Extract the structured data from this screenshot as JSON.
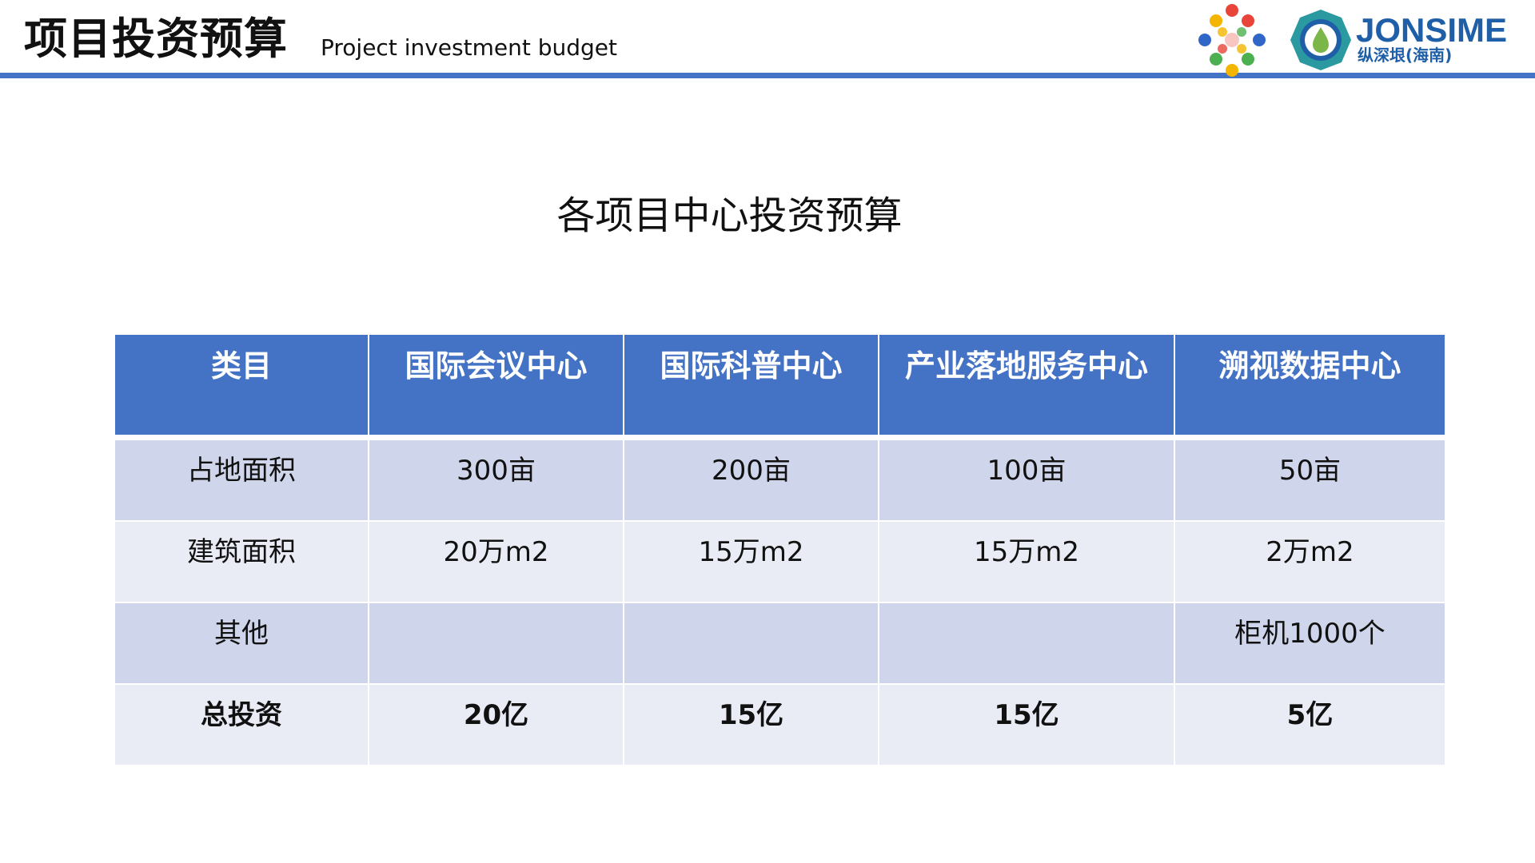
{
  "header": {
    "title": "项目投资预算",
    "subtitle": "Project investment budget",
    "brand": {
      "name": "JONSIME",
      "cn": "纵深垠(海南)",
      "colors": {
        "brand_blue": "#1f5fa8",
        "teal": "#2a9aa0",
        "green": "#7ab648"
      }
    },
    "rule_color": "#4472c4"
  },
  "section_title": "各项目中心投资预算",
  "table": {
    "columns": [
      "类目",
      "国际会议中心",
      "国际科普中心",
      "产业落地服务中心",
      "溯视数据中心"
    ],
    "rows": [
      [
        "占地面积",
        "300亩",
        "200亩",
        "100亩",
        "50亩"
      ],
      [
        "建筑面积",
        "20万m2",
        "15万m2",
        "15万m2",
        "2万m2"
      ],
      [
        "其他",
        "",
        "",
        "",
        "柜机1000个"
      ],
      [
        "总投资",
        "20亿",
        "15亿",
        "15亿",
        "5亿"
      ]
    ],
    "colors": {
      "header": "#4472c4",
      "row_odd": "#cfd5ea",
      "row_even": "#e9ebf5"
    }
  }
}
